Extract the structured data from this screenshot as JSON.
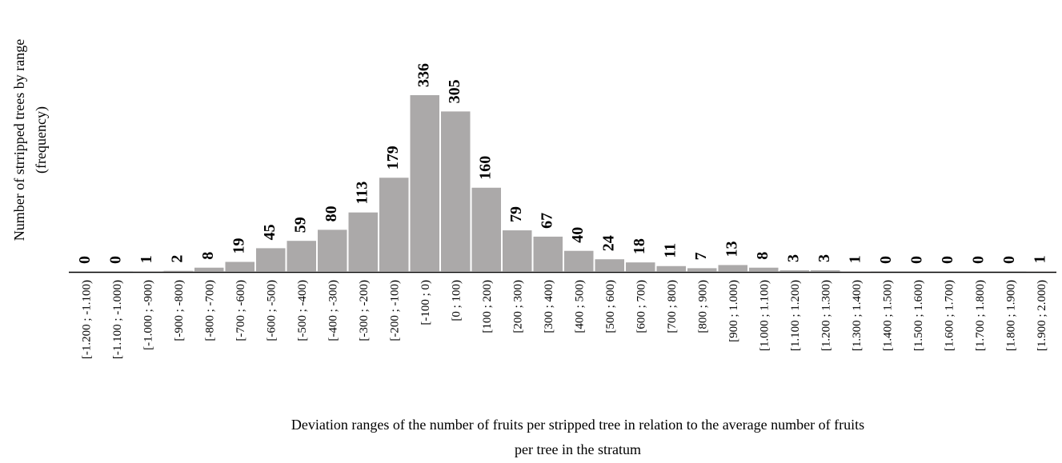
{
  "chart_data": {
    "type": "bar",
    "x_label": [
      "Deviation ranges of the number of fruits per stripped tree in relation to the average number of fruits",
      "per tree in the stratum"
    ],
    "y_label": [
      "Number of strripped trees by range",
      "(frequency)"
    ],
    "categories": [
      "[-1.200 ; -1.100)",
      "[-1.100 ; -1.000)",
      "[-1.000 ; -900)",
      "[-900 ; -800)",
      "[-800 ; -700)",
      "[-700 ; -600)",
      "[-600 ; -500)",
      "[-500 ; -400)",
      "[-400 ; -300)",
      "[-300 ; -200)",
      "[-200 ; -100)",
      "[-100 ; 0)",
      "[0 ; 100)",
      "[100 ; 200)",
      "[200 ; 300)",
      "[300 ; 400)",
      "[400 ; 500)",
      "[500 ; 600)",
      "[600 ; 700)",
      "[700 ; 800)",
      "[800 ; 900)",
      "[900 ; 1.000)",
      "[1.000 ; 1.100)",
      "[1.100 ; 1.200)",
      "[1.200 ; 1.300)",
      "[1.300 ; 1.400)",
      "[1.400 ; 1.500)",
      "[1.500 ; 1.600)",
      "[1.600 ; 1.700)",
      "[1.700 ; 1.800)",
      "[1.800 ; 1.900)",
      "[1.900 ; 2.000)"
    ],
    "values": [
      0,
      0,
      1,
      2,
      8,
      19,
      45,
      59,
      80,
      113,
      179,
      336,
      305,
      160,
      79,
      67,
      40,
      24,
      18,
      11,
      7,
      13,
      8,
      3,
      3,
      1,
      0,
      0,
      0,
      0,
      0,
      1
    ],
    "color": "#aba9a9",
    "grid": false
  }
}
